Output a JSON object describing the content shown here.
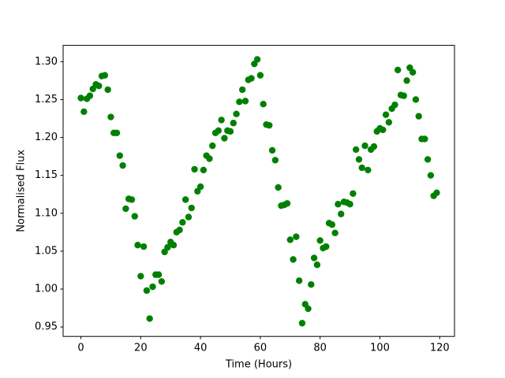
{
  "chart_data": {
    "type": "scatter",
    "x_label": "Time (Hours)",
    "y_label": "Normalised Flux",
    "series": [
      {
        "color": "#008000",
        "x": [
          0,
          1,
          2,
          3,
          4,
          5,
          6,
          7,
          8,
          9,
          10,
          11,
          12,
          13,
          14,
          15,
          16,
          17,
          18,
          19,
          20,
          21,
          22,
          23,
          24,
          25,
          26,
          27,
          28,
          29,
          30,
          31,
          32,
          33,
          34,
          35,
          36,
          37,
          38,
          39,
          40,
          41,
          42,
          43,
          44,
          45,
          46,
          47,
          48,
          49,
          50,
          51,
          52,
          53,
          54,
          55,
          56,
          57,
          58,
          59,
          60,
          61,
          62,
          63,
          64,
          65,
          66,
          67,
          68,
          69,
          70,
          71,
          72,
          73,
          74,
          75,
          76,
          77,
          78,
          79,
          80,
          81,
          82,
          83,
          84,
          85,
          86,
          87,
          88,
          89,
          90,
          91,
          92,
          93,
          94,
          95,
          96,
          97,
          98,
          99,
          100,
          101,
          102,
          103,
          104,
          105,
          106,
          107,
          108,
          109,
          110,
          111,
          112,
          113,
          114,
          115,
          116,
          117,
          118,
          119
        ],
        "values": [
          1.252,
          1.234,
          1.251,
          1.255,
          1.264,
          1.27,
          1.268,
          1.281,
          1.282,
          1.263,
          1.227,
          1.206,
          1.206,
          1.176,
          1.163,
          1.106,
          1.119,
          1.118,
          1.096,
          1.058,
          1.017,
          1.056,
          0.998,
          0.961,
          1.003,
          1.019,
          1.019,
          1.01,
          1.049,
          1.055,
          1.062,
          1.058,
          1.075,
          1.078,
          1.088,
          1.118,
          1.095,
          1.107,
          1.158,
          1.129,
          1.135,
          1.157,
          1.176,
          1.172,
          1.189,
          1.206,
          1.209,
          1.223,
          1.199,
          1.209,
          1.208,
          1.219,
          1.231,
          1.247,
          1.263,
          1.248,
          1.276,
          1.278,
          1.297,
          1.303,
          1.282,
          1.244,
          1.217,
          1.216,
          1.183,
          1.17,
          1.134,
          1.11,
          1.111,
          1.113,
          1.065,
          1.039,
          1.069,
          1.011,
          0.955,
          0.98,
          0.974,
          1.006,
          1.041,
          1.032,
          1.064,
          1.054,
          1.056,
          1.087,
          1.085,
          1.074,
          1.112,
          1.099,
          1.115,
          1.114,
          1.112,
          1.126,
          1.184,
          1.171,
          1.16,
          1.189,
          1.157,
          1.184,
          1.188,
          1.208,
          1.212,
          1.21,
          1.23,
          1.22,
          1.238,
          1.243,
          1.289,
          1.256,
          1.255,
          1.275,
          1.292,
          1.286,
          1.25,
          1.228,
          1.198,
          1.198,
          1.171,
          1.15,
          1.123,
          1.127
        ]
      }
    ],
    "xlim": [
      -5.95,
      124.95
    ],
    "ylim": [
      0.9375,
      1.3215
    ],
    "xticks": [
      0,
      20,
      40,
      60,
      80,
      100,
      120
    ],
    "yticks": [
      0.95,
      {
        "value": 1,
        "label": "1.00"
      },
      1.05,
      {
        "value": 1.1,
        "label": "1.10"
      },
      1.15,
      {
        "value": 1.2,
        "label": "1.20"
      },
      1.25,
      {
        "value": 1.3,
        "label": "1.30"
      }
    ]
  }
}
